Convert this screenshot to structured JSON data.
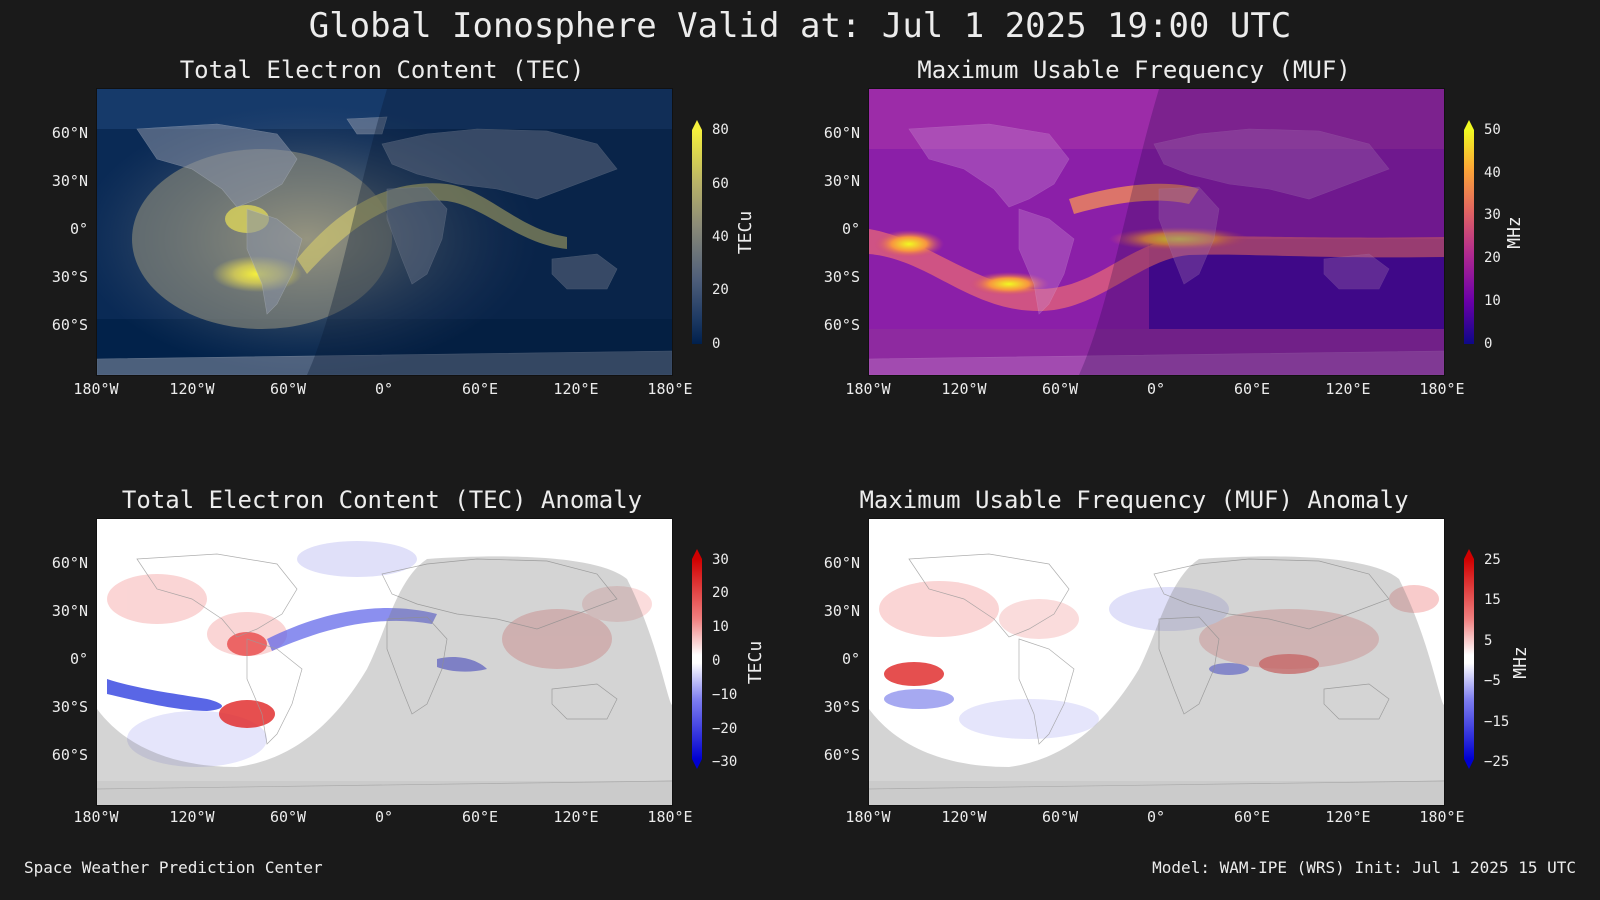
{
  "title": "Global Ionosphere Valid at: Jul 1 2025 19:00 UTC",
  "lat_ticks": [
    "60°N",
    "30°N",
    "0°",
    "30°S",
    "60°S"
  ],
  "lon_ticks": [
    "180°W",
    "120°W",
    "60°W",
    "0°",
    "60°E",
    "120°E",
    "180°E"
  ],
  "panels": [
    {
      "title": "Total Electron Content (TEC)",
      "unit": "TECu",
      "cbar_ticks": [
        "80",
        "60",
        "40",
        "20",
        "0"
      ],
      "colors": {
        "top": "#f5f03c",
        "mid": "#8a8a78",
        "low": "#2a3f6a",
        "bottom": "#00204d"
      }
    },
    {
      "title": "Maximum Usable Frequency (MUF)",
      "unit": "MHz",
      "cbar_ticks": [
        "50",
        "40",
        "30",
        "20",
        "10",
        "0"
      ],
      "colors": {
        "top": "#f0f921",
        "mid": "#cc4778",
        "low": "#7e03a8",
        "bottom": "#0d0887"
      }
    },
    {
      "title": "Total Electron Content (TEC) Anomaly",
      "unit": "TECu",
      "cbar_ticks": [
        "30",
        "20",
        "10",
        "0",
        "−10",
        "−20",
        "−30"
      ],
      "colors": {
        "top": "#d00000",
        "mid": "#ffffff",
        "bottom": "#0000d0"
      }
    },
    {
      "title": "Maximum Usable Frequency (MUF) Anomaly",
      "unit": "MHz",
      "cbar_ticks": [
        "25",
        "15",
        "5",
        "−5",
        "−15",
        "−25"
      ],
      "colors": {
        "top": "#d00000",
        "mid": "#ffffff",
        "bottom": "#0000d0"
      }
    }
  ],
  "footer": {
    "left": "Space Weather Prediction Center",
    "right": "Model: WAM-IPE (WRS) Init: Jul 1 2025 15 UTC"
  }
}
